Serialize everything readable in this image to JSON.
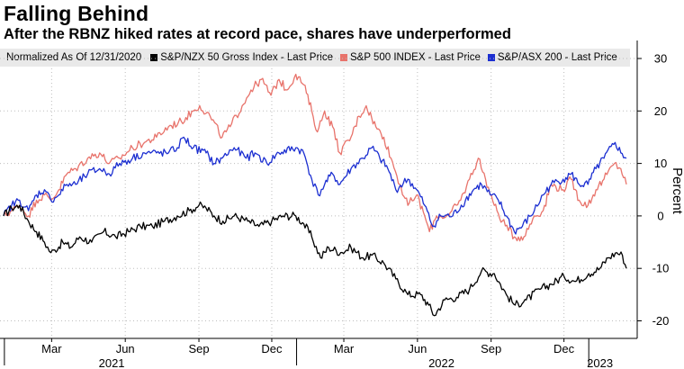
{
  "header": {
    "title": "Falling Behind",
    "subtitle": "After the RBNZ hiked rates at record pace, shares have underperformed"
  },
  "legend": {
    "normalized_label": "Normalized As Of 12/31/2020",
    "items": [
      {
        "label": "S&P/NZX 50 Gross Index - Last Price",
        "color": "#000000"
      },
      {
        "label": "S&P 500 INDEX - Last Price",
        "color": "#e8736b"
      },
      {
        "label": "S&P/ASX 200 - Last Price",
        "color": "#1c2fd1"
      }
    ]
  },
  "chart_data": {
    "type": "line",
    "ylabel": "Percent",
    "ylim": [
      -22,
      32
    ],
    "yticks": [
      30,
      20,
      10,
      0,
      -10,
      -20
    ],
    "month_ticks": [
      "Mar",
      "Jun",
      "Sep",
      "Dec",
      "Mar",
      "Jun",
      "Sep",
      "Dec"
    ],
    "year_labels": [
      "2021",
      "2022",
      "2023"
    ],
    "x_start": "2020-12-31",
    "x_end": "2023-02-17",
    "series": [
      {
        "name": "S&P/NZX 50 Gross Index - Last Price",
        "color": "#000000",
        "points": [
          [
            "2020-12-31",
            0
          ],
          [
            "2021-01-10",
            1.5
          ],
          [
            "2021-01-20",
            2
          ],
          [
            "2021-01-31",
            -1
          ],
          [
            "2021-02-10",
            -3
          ],
          [
            "2021-02-20",
            -5
          ],
          [
            "2021-02-28",
            -7
          ],
          [
            "2021-03-05",
            -6.5
          ],
          [
            "2021-03-15",
            -5
          ],
          [
            "2021-03-25",
            -6
          ],
          [
            "2021-04-05",
            -4
          ],
          [
            "2021-04-20",
            -5
          ],
          [
            "2021-05-05",
            -3
          ],
          [
            "2021-05-20",
            -4
          ],
          [
            "2021-06-05",
            -3
          ],
          [
            "2021-06-20",
            -2
          ],
          [
            "2021-07-05",
            -2
          ],
          [
            "2021-07-20",
            -1
          ],
          [
            "2021-08-05",
            0
          ],
          [
            "2021-08-20",
            1
          ],
          [
            "2021-09-01",
            2
          ],
          [
            "2021-09-10",
            1.5
          ],
          [
            "2021-09-20",
            0
          ],
          [
            "2021-10-01",
            -1
          ],
          [
            "2021-10-15",
            0
          ],
          [
            "2021-11-01",
            -1
          ],
          [
            "2021-11-15",
            -2
          ],
          [
            "2021-12-01",
            -1
          ],
          [
            "2021-12-15",
            0
          ],
          [
            "2021-12-31",
            0
          ],
          [
            "2022-01-10",
            -1.5
          ],
          [
            "2022-01-20",
            -4
          ],
          [
            "2022-01-31",
            -8
          ],
          [
            "2022-02-10",
            -6
          ],
          [
            "2022-02-25",
            -7
          ],
          [
            "2022-03-10",
            -6
          ],
          [
            "2022-03-25",
            -8
          ],
          [
            "2022-04-05",
            -7.5
          ],
          [
            "2022-04-20",
            -9
          ],
          [
            "2022-05-05",
            -12
          ],
          [
            "2022-05-20",
            -15
          ],
          [
            "2022-06-05",
            -15
          ],
          [
            "2022-06-15",
            -17
          ],
          [
            "2022-06-22",
            -19
          ],
          [
            "2022-07-05",
            -16
          ],
          [
            "2022-07-20",
            -15.5
          ],
          [
            "2022-08-05",
            -14
          ],
          [
            "2022-08-20",
            -10.5
          ],
          [
            "2022-09-05",
            -11
          ],
          [
            "2022-09-20",
            -15
          ],
          [
            "2022-10-01",
            -17
          ],
          [
            "2022-10-15",
            -16
          ],
          [
            "2022-11-01",
            -14
          ],
          [
            "2022-11-15",
            -13
          ],
          [
            "2022-12-01",
            -11.5
          ],
          [
            "2022-12-15",
            -12.5
          ],
          [
            "2023-01-01",
            -11
          ],
          [
            "2023-01-15",
            -10
          ],
          [
            "2023-01-25",
            -8
          ],
          [
            "2023-02-05",
            -7
          ],
          [
            "2023-02-12",
            -7.5
          ],
          [
            "2023-02-17",
            -10
          ]
        ]
      },
      {
        "name": "S&P 500 INDEX - Last Price",
        "color": "#e8736b",
        "points": [
          [
            "2020-12-31",
            0
          ],
          [
            "2021-01-10",
            1
          ],
          [
            "2021-01-20",
            2
          ],
          [
            "2021-01-31",
            0
          ],
          [
            "2021-02-10",
            3
          ],
          [
            "2021-02-20",
            4
          ],
          [
            "2021-02-28",
            3
          ],
          [
            "2021-03-10",
            5
          ],
          [
            "2021-03-20",
            8
          ],
          [
            "2021-03-31",
            9
          ],
          [
            "2021-04-15",
            11
          ],
          [
            "2021-04-30",
            12
          ],
          [
            "2021-05-12",
            10
          ],
          [
            "2021-05-25",
            11
          ],
          [
            "2021-06-10",
            13
          ],
          [
            "2021-06-25",
            14
          ],
          [
            "2021-07-10",
            15
          ],
          [
            "2021-07-25",
            17
          ],
          [
            "2021-08-10",
            18
          ],
          [
            "2021-08-25",
            20
          ],
          [
            "2021-09-02",
            21
          ],
          [
            "2021-09-15",
            19
          ],
          [
            "2021-09-30",
            15
          ],
          [
            "2021-10-10",
            17
          ],
          [
            "2021-10-25",
            21
          ],
          [
            "2021-11-05",
            24
          ],
          [
            "2021-11-18",
            26
          ],
          [
            "2021-11-30",
            23
          ],
          [
            "2021-12-10",
            26
          ],
          [
            "2021-12-20",
            24
          ],
          [
            "2021-12-31",
            27
          ],
          [
            "2022-01-10",
            25
          ],
          [
            "2022-01-20",
            20
          ],
          [
            "2022-01-27",
            16
          ],
          [
            "2022-02-05",
            20
          ],
          [
            "2022-02-15",
            17
          ],
          [
            "2022-02-24",
            12
          ],
          [
            "2022-03-10",
            15
          ],
          [
            "2022-03-20",
            19
          ],
          [
            "2022-03-29",
            21
          ],
          [
            "2022-04-10",
            17
          ],
          [
            "2022-04-20",
            15
          ],
          [
            "2022-04-29",
            11
          ],
          [
            "2022-05-10",
            6
          ],
          [
            "2022-05-20",
            2
          ],
          [
            "2022-05-31",
            4
          ],
          [
            "2022-06-10",
            0
          ],
          [
            "2022-06-16",
            -3
          ],
          [
            "2022-06-25",
            0
          ],
          [
            "2022-07-10",
            0
          ],
          [
            "2022-07-25",
            3
          ],
          [
            "2022-08-05",
            7
          ],
          [
            "2022-08-16",
            11
          ],
          [
            "2022-08-25",
            7
          ],
          [
            "2022-09-05",
            2
          ],
          [
            "2022-09-15",
            -1
          ],
          [
            "2022-09-30",
            -4
          ],
          [
            "2022-10-12",
            -4
          ],
          [
            "2022-10-25",
            0
          ],
          [
            "2022-11-05",
            1
          ],
          [
            "2022-11-15",
            6
          ],
          [
            "2022-11-30",
            5
          ],
          [
            "2022-12-10",
            7
          ],
          [
            "2022-12-20",
            3
          ],
          [
            "2022-12-31",
            2
          ],
          [
            "2023-01-10",
            5
          ],
          [
            "2023-01-20",
            7
          ],
          [
            "2023-02-02",
            10
          ],
          [
            "2023-02-10",
            9
          ],
          [
            "2023-02-17",
            6
          ]
        ]
      },
      {
        "name": "S&P/ASX 200 - Last Price",
        "color": "#1c2fd1",
        "points": [
          [
            "2020-12-31",
            0
          ],
          [
            "2021-01-10",
            2
          ],
          [
            "2021-01-20",
            3
          ],
          [
            "2021-01-31",
            1
          ],
          [
            "2021-02-10",
            4
          ],
          [
            "2021-02-20",
            5
          ],
          [
            "2021-02-28",
            3
          ],
          [
            "2021-03-10",
            4
          ],
          [
            "2021-03-20",
            6
          ],
          [
            "2021-03-31",
            6
          ],
          [
            "2021-04-15",
            8
          ],
          [
            "2021-04-30",
            9
          ],
          [
            "2021-05-12",
            8
          ],
          [
            "2021-05-25",
            10
          ],
          [
            "2021-06-10",
            11
          ],
          [
            "2021-06-25",
            12
          ],
          [
            "2021-07-10",
            12
          ],
          [
            "2021-07-25",
            12
          ],
          [
            "2021-08-05",
            13
          ],
          [
            "2021-08-13",
            15
          ],
          [
            "2021-08-25",
            13
          ],
          [
            "2021-09-10",
            12
          ],
          [
            "2021-09-20",
            10
          ],
          [
            "2021-09-30",
            11
          ],
          [
            "2021-10-15",
            13
          ],
          [
            "2021-10-30",
            11
          ],
          [
            "2021-11-10",
            12
          ],
          [
            "2021-11-25",
            10
          ],
          [
            "2021-12-10",
            12
          ],
          [
            "2021-12-31",
            13
          ],
          [
            "2022-01-10",
            12
          ],
          [
            "2022-01-20",
            7
          ],
          [
            "2022-01-28",
            4
          ],
          [
            "2022-02-05",
            6
          ],
          [
            "2022-02-15",
            8
          ],
          [
            "2022-02-24",
            6
          ],
          [
            "2022-03-10",
            9
          ],
          [
            "2022-03-25",
            11
          ],
          [
            "2022-04-05",
            13
          ],
          [
            "2022-04-15",
            11
          ],
          [
            "2022-04-25",
            9
          ],
          [
            "2022-05-05",
            5
          ],
          [
            "2022-05-20",
            7
          ],
          [
            "2022-05-31",
            5
          ],
          [
            "2022-06-10",
            2
          ],
          [
            "2022-06-20",
            -2
          ],
          [
            "2022-06-30",
            0
          ],
          [
            "2022-07-15",
            0
          ],
          [
            "2022-07-31",
            3
          ],
          [
            "2022-08-10",
            5
          ],
          [
            "2022-08-20",
            6
          ],
          [
            "2022-08-31",
            4
          ],
          [
            "2022-09-10",
            3
          ],
          [
            "2022-09-20",
            0
          ],
          [
            "2022-09-30",
            -3
          ],
          [
            "2022-10-10",
            -2
          ],
          [
            "2022-10-25",
            1
          ],
          [
            "2022-11-05",
            4
          ],
          [
            "2022-11-15",
            6
          ],
          [
            "2022-11-30",
            7
          ],
          [
            "2022-12-10",
            8
          ],
          [
            "2022-12-20",
            6
          ],
          [
            "2022-12-31",
            6
          ],
          [
            "2023-01-10",
            9
          ],
          [
            "2023-01-20",
            11
          ],
          [
            "2023-02-03",
            14
          ],
          [
            "2023-02-10",
            12
          ],
          [
            "2023-02-17",
            11
          ]
        ]
      }
    ]
  }
}
